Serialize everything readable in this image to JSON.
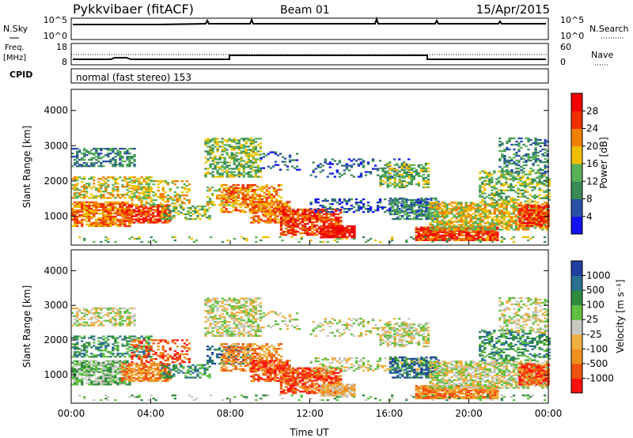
{
  "header": {
    "station": "Pykkvibaer (fitACF)",
    "beam": "Beam 01",
    "date": "15/Apr/2015"
  },
  "panels": {
    "nsky": {
      "left_label": "N.Sky",
      "right_label": "N.Search",
      "ticks_left": [
        "10^5",
        "10^0"
      ],
      "ticks_right": [
        "10^5",
        "10^0"
      ]
    },
    "freq": {
      "left_label_1": "Freq.",
      "left_label_2": "[MHz]",
      "ticks_left": [
        "18",
        "8"
      ],
      "ticks_right": [
        "60",
        "0"
      ],
      "right_label": "Nave"
    },
    "cpid": {
      "label": "CPID",
      "text": "normal (fast stereo) 153"
    }
  },
  "colors": {
    "power_scale": [
      "#1010f0",
      "#2a50a8",
      "#3a8a58",
      "#58b058",
      "#f0c000",
      "#f08000",
      "#f03000",
      "#f00000"
    ],
    "velocity_scale": [
      "#ff1010",
      "#f05010",
      "#f09020",
      "#f0b040",
      "#c8c8c0",
      "#60c040",
      "#308a40",
      "#2a7090",
      "#2040a0"
    ]
  },
  "chart_data": [
    {
      "type": "heatmap",
      "name": "power",
      "xlabel": "",
      "ylabel": "Slant Range [km]",
      "xlim": [
        0,
        24
      ],
      "ylim": [
        180,
        4600
      ],
      "yticks": [
        "1000",
        "2000",
        "3000",
        "4000"
      ],
      "colorbar_label": "Power [dB]",
      "colorbar_ticks": [
        "4",
        "8",
        "12",
        "16",
        "20",
        "24",
        "28"
      ]
    },
    {
      "type": "heatmap",
      "name": "velocity",
      "xlabel": "Time UT",
      "ylabel": "Slant Range [km]",
      "xlim": [
        0,
        24
      ],
      "ylim": [
        180,
        4600
      ],
      "yticks": [
        "1000",
        "2000",
        "3000",
        "4000"
      ],
      "xticks": [
        "00:00",
        "04:00",
        "08:00",
        "12:00",
        "16:00",
        "20:00",
        "00:00"
      ],
      "colorbar_label": "Velocity [m s⁻¹]",
      "colorbar_ticks": [
        "1000",
        "500",
        "100",
        "25",
        "-25",
        "-100",
        "-500",
        "-1000"
      ]
    }
  ]
}
